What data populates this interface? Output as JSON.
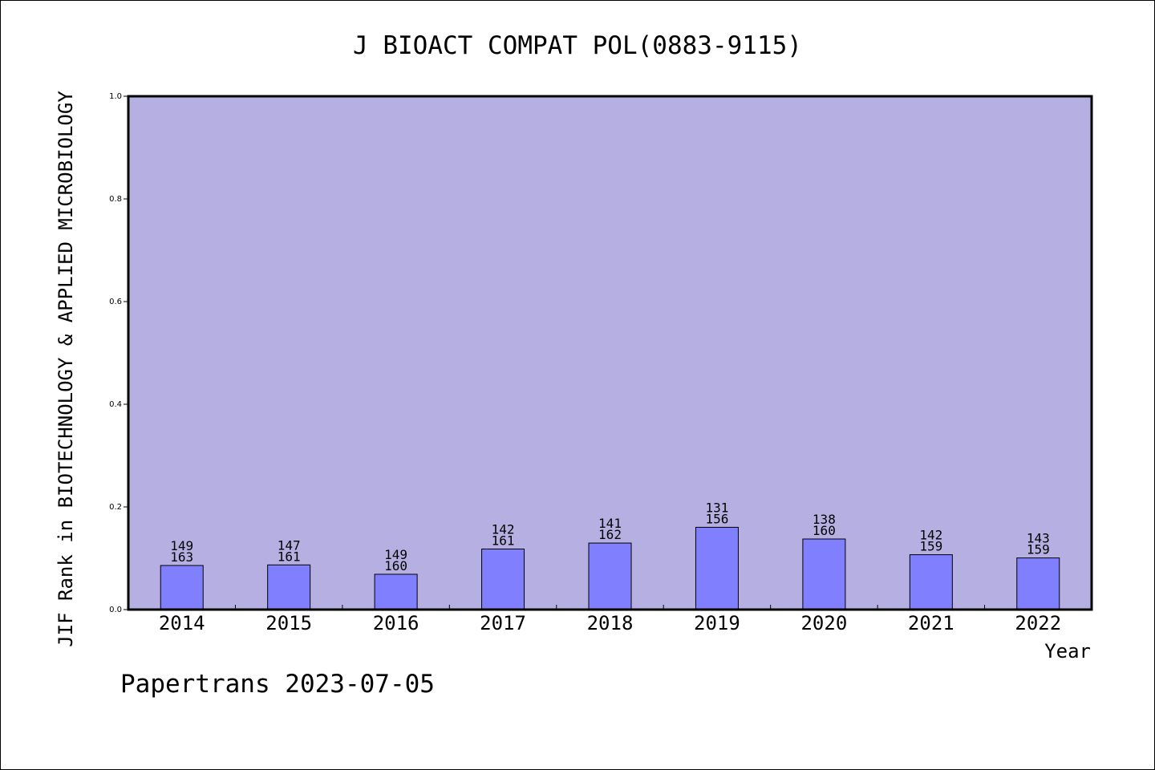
{
  "chart_data": {
    "type": "bar",
    "title": "J BIOACT COMPAT POL(0883-9115)",
    "xlabel": "Year",
    "ylabel": "JIF Rank in BIOTECHNOLOGY & APPLIED MICROBIOLOGY",
    "ylim": [
      0,
      1.0
    ],
    "yticks": [
      "0.0",
      "0.2",
      "0.4",
      "0.6",
      "0.8",
      "1.0"
    ],
    "grid": false,
    "categories": [
      "2014",
      "2015",
      "2016",
      "2017",
      "2018",
      "2019",
      "2020",
      "2021",
      "2022"
    ],
    "values": [
      0.0859,
      0.087,
      0.0688,
      0.118,
      0.1296,
      0.1603,
      0.1375,
      0.1069,
      0.1006
    ],
    "rank_labels": [
      "149",
      "147",
      "149",
      "142",
      "141",
      "131",
      "138",
      "142",
      "143"
    ],
    "total_labels": [
      "163",
      "161",
      "160",
      "161",
      "162",
      "156",
      "160",
      "159",
      "159"
    ],
    "colors": {
      "plot_background": "#b6b0e2",
      "bar_fill": "#8080ff",
      "bar_stroke": "#000000"
    }
  },
  "footer": {
    "watermark": "Papertrans 2023-07-05"
  }
}
